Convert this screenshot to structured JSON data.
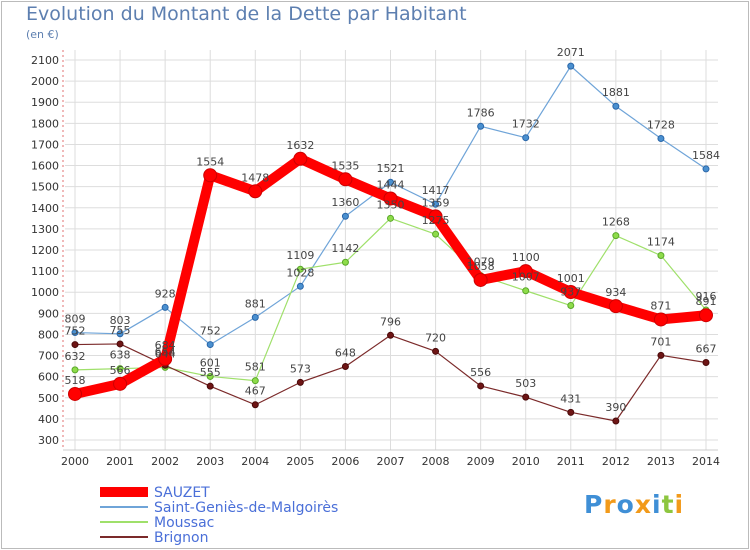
{
  "chart_data": {
    "type": "line",
    "title": "Evolution du Montant de la Dette par Habitant",
    "subtitle": "(en €)",
    "xlabel": "",
    "ylabel": "",
    "x": [
      "2000",
      "2001",
      "2002",
      "2003",
      "2004",
      "2005",
      "2006",
      "2007",
      "2008",
      "2009",
      "2010",
      "2011",
      "2012",
      "2013",
      "2014"
    ],
    "ylim": [
      300,
      2100
    ],
    "yticks": [
      "2100",
      "2000",
      "1900",
      "1800",
      "1700",
      "1600",
      "1500",
      "1400",
      "1300",
      "1200",
      "1100",
      "1000",
      "900",
      "800",
      "700",
      "600",
      "500",
      "400",
      "300"
    ],
    "grid": true,
    "legend_position": "bottom-left",
    "series": [
      {
        "name": "SAUZET",
        "color": "#ff0000",
        "values": [
          518,
          566,
          684,
          1554,
          1478,
          1632,
          1535,
          1444,
          1359,
          1058,
          1100,
          1001,
          934,
          871,
          891
        ]
      },
      {
        "name": "Saint-Geniès-de-Malgoirès",
        "color": "#6fa4d8",
        "values": [
          809,
          803,
          928,
          752,
          881,
          1028,
          1360,
          1521,
          1417,
          1786,
          1732,
          2071,
          1881,
          1728,
          1584
        ]
      },
      {
        "name": "Moussac",
        "color": "#9fe06a",
        "values": [
          632,
          638,
          644,
          601,
          581,
          1109,
          1142,
          1350,
          1275,
          1079,
          1007,
          937,
          1268,
          1174,
          916
        ]
      },
      {
        "name": "Brignon",
        "color": "#7b2a2a",
        "values": [
          752,
          755,
          654,
          555,
          467,
          573,
          648,
          796,
          720,
          556,
          503,
          431,
          390,
          701,
          667
        ]
      }
    ]
  },
  "logo": {
    "text": "Proxiti",
    "colors": [
      "#3f8fd6",
      "#f29a1a",
      "#3f8fd6",
      "#f29a1a",
      "#3f8fd6",
      "#8dc63f",
      "#f29a1a"
    ]
  }
}
